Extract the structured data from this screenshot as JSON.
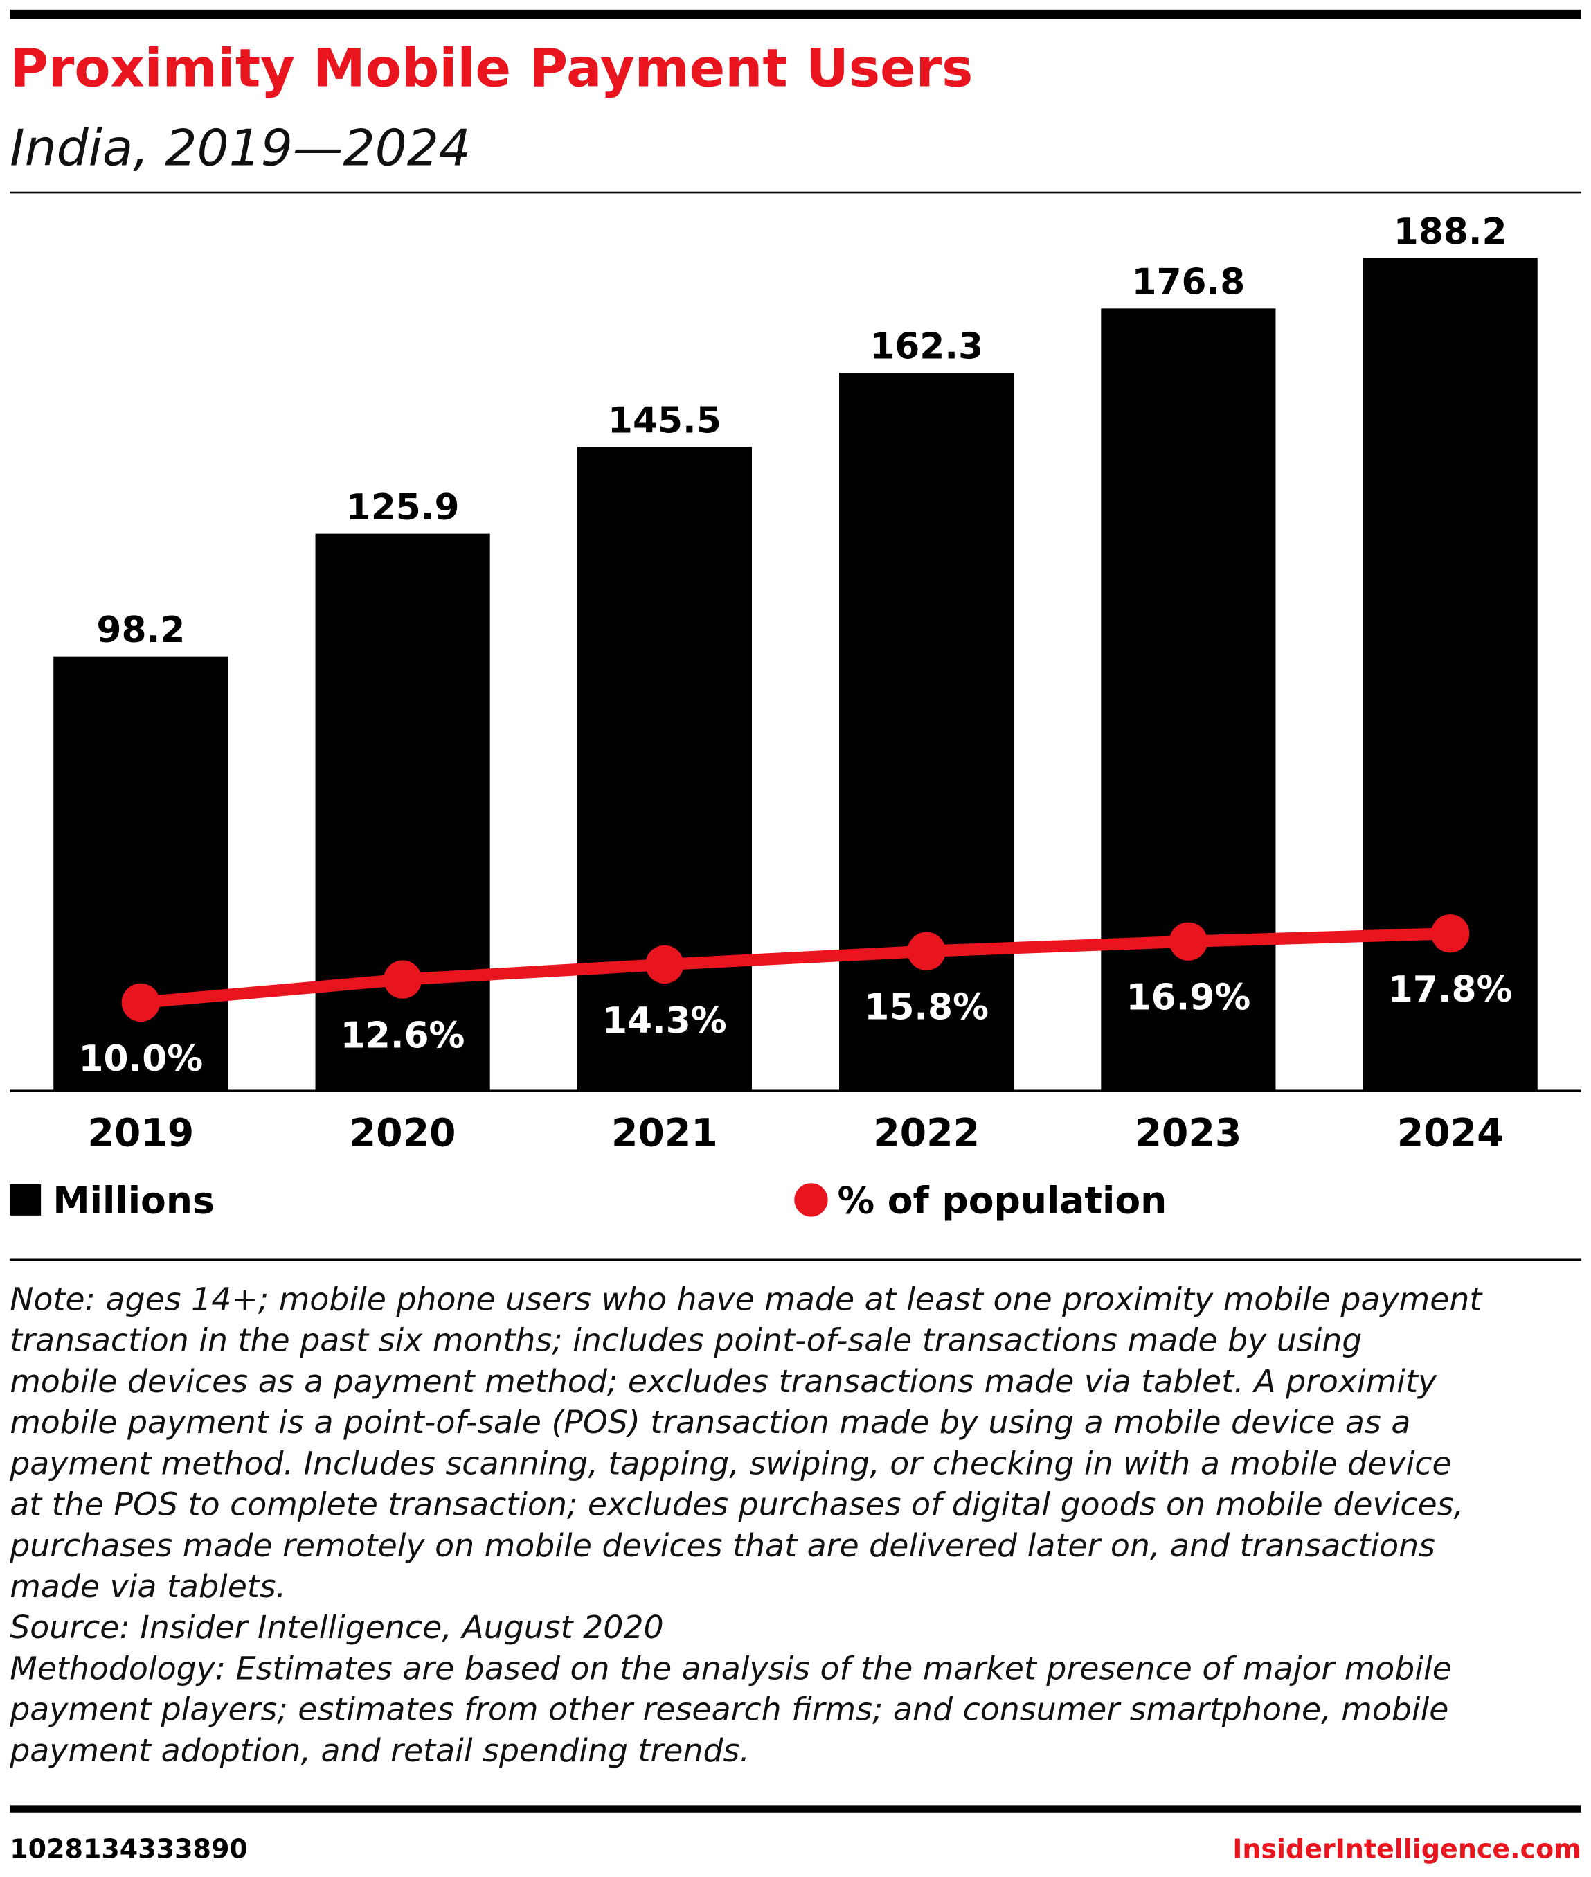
{
  "chart_data": {
    "type": "bar-line",
    "title": "Proximity Mobile Payment Users",
    "subtitle": "India, 2019—2024",
    "categories": [
      "2019",
      "2020",
      "2021",
      "2022",
      "2023",
      "2024"
    ],
    "series": [
      {
        "name": "Millions",
        "type": "bar",
        "color": "#000000",
        "values": [
          98.2,
          125.9,
          145.5,
          162.3,
          176.8,
          188.2
        ]
      },
      {
        "name": "% of population",
        "type": "line",
        "axis": "y2",
        "color": "#e8141e",
        "values": [
          10.0,
          12.6,
          14.3,
          15.8,
          16.9,
          17.8
        ],
        "value_labels": [
          "10.0%",
          "12.6%",
          "14.3%",
          "15.8%",
          "16.9%",
          "17.8%"
        ]
      }
    ],
    "ylim": [
      0,
      200
    ],
    "y2lim": [
      0,
      100
    ],
    "grid": false,
    "legend": "bottom"
  },
  "notes": [
    "Note: ages 14+; mobile phone users who have made at least one proximity mobile payment",
    "transaction in the past six months; includes point-of-sale transactions made by using",
    "mobile devices as a payment method; excludes transactions made via tablet. A proximity",
    "mobile payment is a point-of-sale (POS) transaction made by using a mobile device as a",
    "payment method. Includes scanning, tapping, swiping, or checking in with a mobile device",
    "at the POS to complete transaction; excludes purchases of digital goods on mobile devices,",
    "purchases made remotely on mobile devices that are delivered later on, and transactions",
    "made via tablets.",
    "Source: Insider Intelligence, August 2020",
    "Methodology: Estimates are based on the analysis of the market presence of major mobile",
    "payment players; estimates from other research firms; and consumer smartphone, mobile",
    "payment adoption, and retail spending trends."
  ],
  "footer": {
    "id": "1028134333890",
    "brand": "InsiderIntelligence.com"
  }
}
